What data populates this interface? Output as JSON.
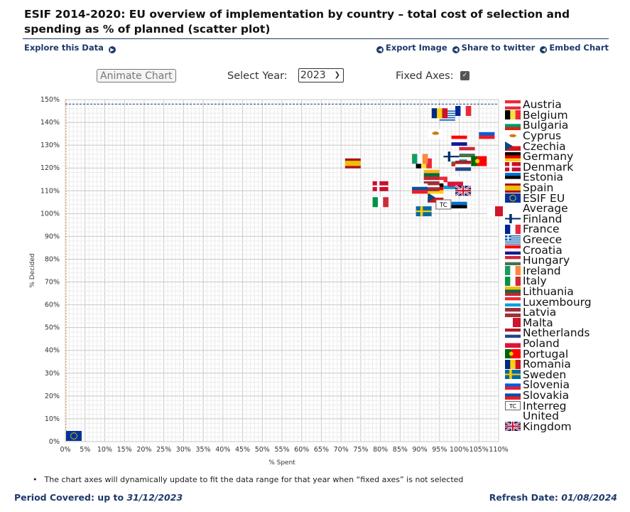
{
  "title": "ESIF 2014-2020: EU overview of implementation by country – total cost of selection and spending as % of planned (scatter plot)",
  "links": {
    "explore": "Explore this Data",
    "export": "Export Image",
    "twitter": "Share to twitter",
    "embed": "Embed Chart"
  },
  "controls": {
    "animate_label": "Animate Chart",
    "year_label": "Select Year:",
    "year_value": "2023",
    "fixed_axes_label": "Fixed Axes:",
    "fixed_axes_checked": true
  },
  "note": "The chart axes will dynamically update to fit the data range for that year when “fixed axes” is not selected",
  "footer": {
    "period_label": "Period Covered: up to",
    "period_value": "31/12/2023",
    "refresh_label": "Refresh Date:",
    "refresh_value": "01/08/2024"
  },
  "chart_data": {
    "type": "scatter",
    "xlabel": "% Spent",
    "ylabel": "% Decided",
    "xlim": [
      0,
      110
    ],
    "ylim": [
      0,
      150
    ],
    "x_ticks": [
      "0%",
      "5%",
      "10%",
      "15%",
      "20%",
      "25%",
      "30%",
      "35%",
      "40%",
      "45%",
      "50%",
      "55%",
      "60%",
      "65%",
      "70%",
      "75%",
      "80%",
      "85%",
      "90%",
      "95%",
      "100%",
      "105%",
      "110%"
    ],
    "y_ticks": [
      "0%",
      "10%",
      "20%",
      "30%",
      "40%",
      "50%",
      "60%",
      "70%",
      "80%",
      "90%",
      "100%",
      "110%",
      "120%",
      "130%",
      "140%",
      "150%"
    ],
    "grid": true,
    "legend_position": "right",
    "reference_lines": {
      "x": 0,
      "y": 148
    },
    "points": [
      {
        "name": "Austria",
        "code": "AT",
        "x": 96,
        "y": 114
      },
      {
        "name": "Belgium",
        "code": "BE",
        "x": 91,
        "y": 122
      },
      {
        "name": "Bulgaria",
        "code": "BG",
        "x": 100,
        "y": 123
      },
      {
        "name": "Cyprus",
        "code": "CY",
        "x": 94,
        "y": 135
      },
      {
        "name": "Czechia",
        "code": "CZ",
        "x": 94,
        "y": 107
      },
      {
        "name": "Germany",
        "code": "DE",
        "x": 94,
        "y": 111
      },
      {
        "name": "Denmark",
        "code": "DK",
        "x": 80,
        "y": 112
      },
      {
        "name": "Estonia",
        "code": "EE",
        "x": 100,
        "y": 103
      },
      {
        "name": "Spain",
        "code": "ES",
        "x": 73,
        "y": 122
      },
      {
        "name": "ESIF EU Average",
        "code": "EU",
        "x": 2,
        "y": 0
      },
      {
        "name": "Finland",
        "code": "FI",
        "x": 98,
        "y": 125
      },
      {
        "name": "France",
        "code": "FR",
        "x": 101,
        "y": 145
      },
      {
        "name": "Greece",
        "code": "GR",
        "x": 97,
        "y": 143
      },
      {
        "name": "Croatia",
        "code": "HR",
        "x": 100,
        "y": 132
      },
      {
        "name": "Hungary",
        "code": "HU",
        "x": 102,
        "y": 127
      },
      {
        "name": "Ireland",
        "code": "IE",
        "x": 90,
        "y": 124
      },
      {
        "name": "Italy",
        "code": "IT",
        "x": 80,
        "y": 105
      },
      {
        "name": "Lithuania",
        "code": "LT",
        "x": 93,
        "y": 117
      },
      {
        "name": "Luxembourg",
        "code": "LU",
        "x": 98,
        "y": 113
      },
      {
        "name": "Latvia",
        "code": "LV",
        "x": 93,
        "y": 112
      },
      {
        "name": "Malta",
        "code": "MT",
        "x": 109,
        "y": 101
      },
      {
        "name": "Netherlands",
        "code": "NL",
        "x": 101,
        "y": 121
      },
      {
        "name": "Poland",
        "code": "PL",
        "x": 99,
        "y": 114
      },
      {
        "name": "Portugal",
        "code": "PT",
        "x": 105,
        "y": 123
      },
      {
        "name": "Romania",
        "code": "RO",
        "x": 95,
        "y": 144
      },
      {
        "name": "Sweden",
        "code": "SE",
        "x": 91,
        "y": 101
      },
      {
        "name": "Slovenia",
        "code": "SI",
        "x": 107,
        "y": 135
      },
      {
        "name": "Slovakia",
        "code": "SK",
        "x": 90,
        "y": 111
      },
      {
        "name": "Interreg",
        "code": "TC",
        "x": 96,
        "y": 104
      },
      {
        "name": "United Kingdom",
        "code": "UK",
        "x": 101,
        "y": 110
      }
    ],
    "legend": [
      {
        "code": "AT",
        "label": "Austria"
      },
      {
        "code": "BE",
        "label": "Belgium"
      },
      {
        "code": "BG",
        "label": "Bulgaria"
      },
      {
        "code": "CY",
        "label": "Cyprus"
      },
      {
        "code": "CZ",
        "label": "Czechia"
      },
      {
        "code": "DE",
        "label": "Germany"
      },
      {
        "code": "DK",
        "label": "Denmark"
      },
      {
        "code": "EE",
        "label": "Estonia"
      },
      {
        "code": "ES",
        "label": "Spain"
      },
      {
        "code": "EU",
        "label": "ESIF EU"
      },
      {
        "code": "",
        "label": "Average"
      },
      {
        "code": "FI",
        "label": "Finland"
      },
      {
        "code": "FR",
        "label": "France"
      },
      {
        "code": "GR",
        "label": "Greece"
      },
      {
        "code": "HR",
        "label": "Croatia"
      },
      {
        "code": "HU",
        "label": "Hungary"
      },
      {
        "code": "IE",
        "label": "Ireland"
      },
      {
        "code": "IT",
        "label": "Italy"
      },
      {
        "code": "LT",
        "label": "Lithuania"
      },
      {
        "code": "LU",
        "label": "Luxembourg"
      },
      {
        "code": "LV",
        "label": "Latvia"
      },
      {
        "code": "MT",
        "label": "Malta"
      },
      {
        "code": "NL",
        "label": "Netherlands"
      },
      {
        "code": "PL",
        "label": "Poland"
      },
      {
        "code": "PT",
        "label": "Portugal"
      },
      {
        "code": "RO",
        "label": "Romania"
      },
      {
        "code": "SE",
        "label": "Sweden"
      },
      {
        "code": "SI",
        "label": "Slovenia"
      },
      {
        "code": "SK",
        "label": "Slovakia"
      },
      {
        "code": "TC",
        "label": "Interreg"
      },
      {
        "code": "",
        "label": "United"
      },
      {
        "code": "UK",
        "label": "Kingdom"
      }
    ],
    "flags": {
      "AT": {
        "type": "h",
        "colors": [
          "#ed2939",
          "#ffffff",
          "#ed2939"
        ]
      },
      "BE": {
        "type": "v",
        "colors": [
          "#000000",
          "#fae042",
          "#ed2939"
        ]
      },
      "BG": {
        "type": "h",
        "colors": [
          "#ffffff",
          "#00966e",
          "#d62612"
        ]
      },
      "CY": {
        "type": "cy",
        "colors": [
          "#ffffff",
          "#d57800"
        ]
      },
      "CZ": {
        "type": "cz",
        "colors": [
          "#ffffff",
          "#d7141a",
          "#11457e"
        ]
      },
      "DE": {
        "type": "h",
        "colors": [
          "#000000",
          "#dd0000",
          "#ffce00"
        ]
      },
      "DK": {
        "type": "cross",
        "colors": [
          "#c8102e",
          "#ffffff"
        ]
      },
      "EE": {
        "type": "h",
        "colors": [
          "#0072ce",
          "#000000",
          "#ffffff"
        ]
      },
      "ES": {
        "type": "hw",
        "colors": [
          "#aa151b",
          "#f1bf00",
          "#aa151b"
        ]
      },
      "EU": {
        "type": "eu",
        "colors": [
          "#003399",
          "#ffcc00"
        ]
      },
      "FI": {
        "type": "cross",
        "colors": [
          "#ffffff",
          "#002f6c"
        ]
      },
      "FR": {
        "type": "v",
        "colors": [
          "#002395",
          "#ffffff",
          "#ed2939"
        ]
      },
      "GR": {
        "type": "gr",
        "colors": [
          "#0d5eaf",
          "#ffffff"
        ]
      },
      "HR": {
        "type": "h",
        "colors": [
          "#ff0000",
          "#ffffff",
          "#171796"
        ]
      },
      "HU": {
        "type": "h",
        "colors": [
          "#ce2939",
          "#ffffff",
          "#477050"
        ]
      },
      "IE": {
        "type": "v",
        "colors": [
          "#169b62",
          "#ffffff",
          "#ff883e"
        ]
      },
      "IT": {
        "type": "v",
        "colors": [
          "#009246",
          "#ffffff",
          "#ce2b37"
        ]
      },
      "LT": {
        "type": "h",
        "colors": [
          "#fdb913",
          "#006a44",
          "#c1272d"
        ]
      },
      "LU": {
        "type": "h",
        "colors": [
          "#ed2939",
          "#ffffff",
          "#00a1de"
        ]
      },
      "LV": {
        "type": "lv",
        "colors": [
          "#9e3039",
          "#ffffff"
        ]
      },
      "MT": {
        "type": "v2",
        "colors": [
          "#ffffff",
          "#cf142b"
        ]
      },
      "NL": {
        "type": "h",
        "colors": [
          "#ae1c28",
          "#ffffff",
          "#21468b"
        ]
      },
      "PL": {
        "type": "h2",
        "colors": [
          "#ffffff",
          "#dc143c"
        ]
      },
      "PT": {
        "type": "pt",
        "colors": [
          "#006600",
          "#ff0000",
          "#ffcc00"
        ]
      },
      "RO": {
        "type": "v",
        "colors": [
          "#002b7f",
          "#fcd116",
          "#ce1126"
        ]
      },
      "SE": {
        "type": "cross",
        "colors": [
          "#006aa7",
          "#fecc00"
        ]
      },
      "SI": {
        "type": "h",
        "colors": [
          "#ffffff",
          "#005ce5",
          "#ed1c24"
        ]
      },
      "SK": {
        "type": "h",
        "colors": [
          "#ffffff",
          "#0b4ea2",
          "#ee1c25"
        ]
      },
      "TC": {
        "type": "tc",
        "colors": [
          "#ffffff",
          "#000000"
        ]
      },
      "UK": {
        "type": "uk",
        "colors": [
          "#012169",
          "#ffffff",
          "#c8102e"
        ]
      }
    }
  }
}
